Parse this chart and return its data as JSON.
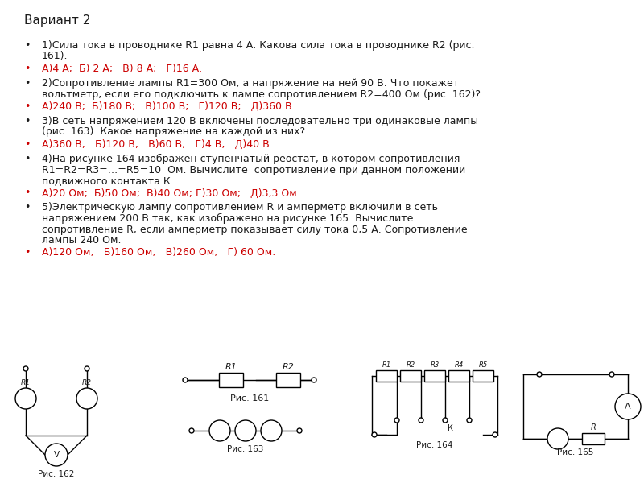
{
  "title": "Вариант 2",
  "background_color": "#ffffff",
  "text_color_black": "#1a1a1a",
  "text_color_red": "#cc0000",
  "fontsize_title": 11,
  "fontsize_body": 9,
  "questions": [
    {
      "q": "1)Сила тока в проводнике R1 равна 4 А. Какова сила тока в проводнике R2 (рис.\n    161).",
      "a": "А)4 А;  Б) 2 А;   В) 8 А;   Г)16 А."
    },
    {
      "q": "2)Сопротивление лампы R1=300 Ом, а напряжение на ней 90 В. Что покажет\n    вольтметр, если его подключить к лампе сопротивлением R2=400 Ом (рис. 162)?",
      "a": "А)240 В;  Б)180 В;   В)100 В;   Г)120 В;   Д)360 В."
    },
    {
      "q": "3)В сеть напряжением 120 В включены последовательно три одинаковые лампы\n    (рис. 163). Какое напряжение на каждой из них?",
      "a": "А)360 В;   Б)120 В;   В)60 В;   Г)4 В;   Д)40 В."
    },
    {
      "q": "4)На рисунке 164 изображен ступенчатый реостат, в котором сопротивления\n    R1=R2=R3=…=R5=10  Ом. Вычислите  сопротивление при данном положении\n    подвижного контакта К.",
      "a": "А)20 Ом;  Б)50 Ом;  В)40 Ом; Г)30 Ом;   Д)3,3 Ом."
    },
    {
      "q": "5)Электрическую лампу сопротивлением R и амперметр включили в сеть\n    напряжением 200 В так, как изображено на рисунке 165. Вычислите\n    сопротивление R, если амперметр показывает силу тока 0,5 А. Сопротивление\n    лампы 240 Ом.",
      "a": "А)120 Ом;   Б)160 Ом;   В)260 Ом;   Г) 60 Ом."
    }
  ]
}
